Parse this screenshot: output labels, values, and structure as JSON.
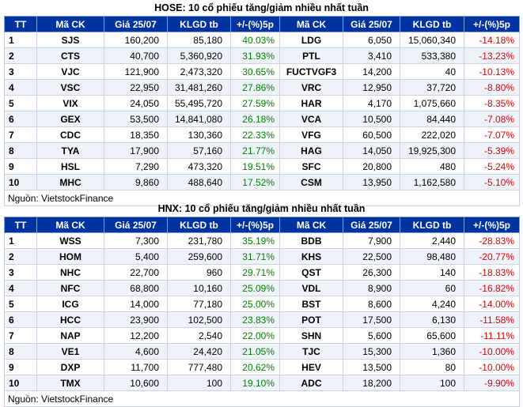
{
  "hose": {
    "title": "HOSE: 10 cổ phiếu tăng/giảm nhiều nhất tuần",
    "headers": [
      "TT",
      "Mã CK",
      "Giá 25/07",
      "KLGD tb",
      "+/-(%)5p",
      "Mã CK",
      "Giá 25/07",
      "KLGD tb",
      "+/-(%)5p"
    ],
    "rows": [
      {
        "tt": "1",
        "ma1": "SJS",
        "gia1": "160,200",
        "kl1": "85,180",
        "pct1": "40.03%",
        "ma2": "LDG",
        "gia2": "6,050",
        "kl2": "15,060,340",
        "pct2": "-14.18%"
      },
      {
        "tt": "2",
        "ma1": "CTS",
        "gia1": "40,700",
        "kl1": "5,360,920",
        "pct1": "31.93%",
        "ma2": "PTL",
        "gia2": "3,410",
        "kl2": "533,380",
        "pct2": "-13.23%"
      },
      {
        "tt": "3",
        "ma1": "VJC",
        "gia1": "121,900",
        "kl1": "2,473,320",
        "pct1": "30.65%",
        "ma2": "FUCTVGF3",
        "gia2": "14,200",
        "kl2": "40",
        "pct2": "-10.13%"
      },
      {
        "tt": "4",
        "ma1": "VSC",
        "gia1": "22,950",
        "kl1": "31,481,260",
        "pct1": "27.86%",
        "ma2": "VRC",
        "gia2": "12,950",
        "kl2": "37,720",
        "pct2": "-8.80%"
      },
      {
        "tt": "5",
        "ma1": "VIX",
        "gia1": "24,050",
        "kl1": "55,495,720",
        "pct1": "27.59%",
        "ma2": "HAR",
        "gia2": "4,170",
        "kl2": "1,075,660",
        "pct2": "-8.35%"
      },
      {
        "tt": "6",
        "ma1": "GEX",
        "gia1": "53,500",
        "kl1": "14,841,080",
        "pct1": "26.18%",
        "ma2": "VCA",
        "gia2": "10,500",
        "kl2": "84,440",
        "pct2": "-7.08%"
      },
      {
        "tt": "7",
        "ma1": "CDC",
        "gia1": "18,350",
        "kl1": "130,360",
        "pct1": "22.33%",
        "ma2": "VFG",
        "gia2": "60,500",
        "kl2": "222,020",
        "pct2": "-7.07%"
      },
      {
        "tt": "8",
        "ma1": "TYA",
        "gia1": "17,900",
        "kl1": "57,160",
        "pct1": "21.77%",
        "ma2": "HAG",
        "gia2": "14,050",
        "kl2": "19,925,300",
        "pct2": "-5.39%"
      },
      {
        "tt": "9",
        "ma1": "HSL",
        "gia1": "7,290",
        "kl1": "473,320",
        "pct1": "19.51%",
        "ma2": "SFC",
        "gia2": "20,800",
        "kl2": "480",
        "pct2": "-5.24%"
      },
      {
        "tt": "10",
        "ma1": "MHC",
        "gia1": "9,860",
        "kl1": "488,640",
        "pct1": "17.52%",
        "ma2": "CSM",
        "gia2": "13,950",
        "kl2": "1,162,580",
        "pct2": "-5.10%"
      }
    ],
    "source": "Nguồn: VietstockFinance"
  },
  "hnx": {
    "title": "HNX: 10 cổ phiếu tăng/giảm nhiều nhất tuần",
    "headers": [
      "TT",
      "Mã CK",
      "Giá 25/07",
      "KLGD tb",
      "+/-(%)5p",
      "Mã CK",
      "Giá 25/07",
      "KLGD tb",
      "+/-(%)5p"
    ],
    "rows": [
      {
        "tt": "1",
        "ma1": "WSS",
        "gia1": "7,300",
        "kl1": "231,780",
        "pct1": "35.19%",
        "ma2": "BDB",
        "gia2": "7,900",
        "kl2": "2,440",
        "pct2": "-28.83%"
      },
      {
        "tt": "2",
        "ma1": "HOM",
        "gia1": "5,400",
        "kl1": "259,600",
        "pct1": "31.71%",
        "ma2": "KHS",
        "gia2": "22,500",
        "kl2": "98,480",
        "pct2": "-20.77%"
      },
      {
        "tt": "3",
        "ma1": "NHC",
        "gia1": "22,700",
        "kl1": "960",
        "pct1": "29.71%",
        "ma2": "QST",
        "gia2": "26,300",
        "kl2": "140",
        "pct2": "-18.83%"
      },
      {
        "tt": "4",
        "ma1": "NFC",
        "gia1": "68,800",
        "kl1": "10,160",
        "pct1": "25.09%",
        "ma2": "VDL",
        "gia2": "8,900",
        "kl2": "60",
        "pct2": "-16.82%"
      },
      {
        "tt": "5",
        "ma1": "ICG",
        "gia1": "14,000",
        "kl1": "77,180",
        "pct1": "25.00%",
        "ma2": "BST",
        "gia2": "8,600",
        "kl2": "4,240",
        "pct2": "-14.00%"
      },
      {
        "tt": "6",
        "ma1": "HCC",
        "gia1": "23,900",
        "kl1": "102,500",
        "pct1": "23.83%",
        "ma2": "POT",
        "gia2": "17,500",
        "kl2": "6,130",
        "pct2": "-11.58%"
      },
      {
        "tt": "7",
        "ma1": "NAP",
        "gia1": "12,200",
        "kl1": "2,540",
        "pct1": "22.00%",
        "ma2": "SHN",
        "gia2": "5,600",
        "kl2": "65,600",
        "pct2": "-11.11%"
      },
      {
        "tt": "8",
        "ma1": "VE1",
        "gia1": "4,600",
        "kl1": "24,420",
        "pct1": "21.05%",
        "ma2": "TJC",
        "gia2": "15,300",
        "kl2": "1,360",
        "pct2": "-10.00%"
      },
      {
        "tt": "9",
        "ma1": "DXP",
        "gia1": "11,700",
        "kl1": "777,480",
        "pct1": "20.62%",
        "ma2": "HEV",
        "gia2": "13,500",
        "kl2": "80",
        "pct2": "-10.00%"
      },
      {
        "tt": "10",
        "ma1": "TMX",
        "gia1": "10,600",
        "kl1": "100",
        "pct1": "19.10%",
        "ma2": "ADC",
        "gia2": "18,200",
        "kl2": "100",
        "pct2": "-9.90%"
      }
    ],
    "source": "Nguồn: VietstockFinance"
  },
  "colors": {
    "header_bg": "#0033a0",
    "up": "#008000",
    "down": "#e00000",
    "stripe": "#eef2f9"
  }
}
